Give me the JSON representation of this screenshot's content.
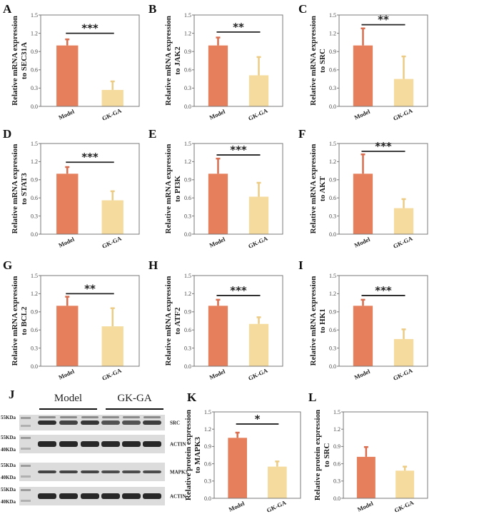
{
  "colors": {
    "model": "#e57f5c",
    "gkga": "#f5dc9e",
    "model_err": "#d86e4f",
    "gkga_err": "#eccb85"
  },
  "chart_data": [
    {
      "panel": "A",
      "type": "bar",
      "categories": [
        "Model",
        "GK-GA"
      ],
      "values": [
        1.0,
        0.27
      ],
      "errors": [
        0.1,
        0.14
      ],
      "ylabel": [
        "Relative mRNA expression",
        "to SEC31A"
      ],
      "ylim": [
        0,
        1.5
      ],
      "yticks": [
        "0.0",
        "0.3",
        "0.6",
        "0.9",
        "1.2",
        "1.5"
      ],
      "significance": "***",
      "sig_y": 1.2
    },
    {
      "panel": "B",
      "type": "bar",
      "categories": [
        "Model",
        "GK-GA"
      ],
      "values": [
        1.0,
        0.51
      ],
      "errors": [
        0.13,
        0.3
      ],
      "ylabel": [
        "Relative mRNA expression",
        "to JAK2"
      ],
      "ylim": [
        0,
        1.5
      ],
      "yticks": [
        "0.0",
        "0.3",
        "0.6",
        "0.9",
        "1.2",
        "1.5"
      ],
      "significance": "**",
      "sig_y": 1.22
    },
    {
      "panel": "C",
      "type": "bar",
      "categories": [
        "Model",
        "GK-GA"
      ],
      "values": [
        1.0,
        0.45
      ],
      "errors": [
        0.28,
        0.37
      ],
      "ylabel": [
        "Relative mRNA expression",
        "to SRC"
      ],
      "ylim": [
        0,
        1.5
      ],
      "yticks": [
        "0.0",
        "0.3",
        "0.6",
        "0.9",
        "1.2",
        "1.5"
      ],
      "significance": "**",
      "sig_y": 1.34
    },
    {
      "panel": "D",
      "type": "bar",
      "categories": [
        "Model",
        "GK-GA"
      ],
      "values": [
        1.0,
        0.56
      ],
      "errors": [
        0.11,
        0.15
      ],
      "ylabel": [
        "Relative mRNA expression",
        "to STAT3"
      ],
      "ylim": [
        0,
        1.5
      ],
      "yticks": [
        "0.0",
        "0.3",
        "0.6",
        "0.9",
        "1.2",
        "1.5"
      ],
      "significance": "***",
      "sig_y": 1.19
    },
    {
      "panel": "E",
      "type": "bar",
      "categories": [
        "Model",
        "GK-GA"
      ],
      "values": [
        1.0,
        0.62
      ],
      "errors": [
        0.25,
        0.23
      ],
      "ylabel": [
        "Relative mRNA expression",
        "to PI3K"
      ],
      "ylim": [
        0,
        1.5
      ],
      "yticks": [
        "0.0",
        "0.3",
        "0.6",
        "0.9",
        "1.2",
        "1.5"
      ],
      "significance": "***",
      "sig_y": 1.31
    },
    {
      "panel": "F",
      "type": "bar",
      "categories": [
        "Model",
        "GK-GA"
      ],
      "values": [
        1.0,
        0.43
      ],
      "errors": [
        0.32,
        0.15
      ],
      "ylabel": [
        "Relative mRNA expression",
        "to AKT"
      ],
      "ylim": [
        0,
        1.5
      ],
      "yticks": [
        "0.0",
        "0.3",
        "0.6",
        "0.9",
        "1.2",
        "1.5"
      ],
      "significance": "***",
      "sig_y": 1.37
    },
    {
      "panel": "G",
      "type": "bar",
      "categories": [
        "Model",
        "GK-GA"
      ],
      "values": [
        1.0,
        0.66
      ],
      "errors": [
        0.15,
        0.3
      ],
      "ylabel": [
        "Relative mRNA expression",
        "to BCL2"
      ],
      "ylim": [
        0,
        1.5
      ],
      "yticks": [
        "0.0",
        "0.3",
        "0.6",
        "0.9",
        "1.2",
        "1.5"
      ],
      "significance": "**",
      "sig_y": 1.2
    },
    {
      "panel": "H",
      "type": "bar",
      "categories": [
        "Model",
        "GK-GA"
      ],
      "values": [
        1.0,
        0.7
      ],
      "errors": [
        0.1,
        0.11
      ],
      "ylabel": [
        "Relative mRNA expression",
        "to ATF2"
      ],
      "ylim": [
        0,
        1.5
      ],
      "yticks": [
        "0.0",
        "0.3",
        "0.6",
        "0.9",
        "1.2",
        "1.5"
      ],
      "significance": "***",
      "sig_y": 1.17
    },
    {
      "panel": "I",
      "type": "bar",
      "categories": [
        "Model",
        "GK-GA"
      ],
      "values": [
        1.0,
        0.45
      ],
      "errors": [
        0.1,
        0.16
      ],
      "ylabel": [
        "Relative mRNA expression",
        "to HK1"
      ],
      "ylim": [
        0,
        1.5
      ],
      "yticks": [
        "0.0",
        "0.3",
        "0.6",
        "0.9",
        "1.2",
        "1.5"
      ],
      "significance": "***",
      "sig_y": 1.17
    },
    {
      "panel": "K",
      "type": "bar",
      "categories": [
        "Model",
        "GK-GA"
      ],
      "values": [
        1.05,
        0.55
      ],
      "errors": [
        0.09,
        0.09
      ],
      "ylabel": [
        "Relative protein expression",
        "to MAPK3"
      ],
      "ylim": [
        0,
        1.5
      ],
      "yticks": [
        "0.0",
        "0.3",
        "0.6",
        "0.9",
        "1.2",
        "1.5"
      ],
      "significance": "*",
      "sig_y": 1.29
    },
    {
      "panel": "L",
      "type": "bar",
      "categories": [
        "Model",
        "GK-GA"
      ],
      "values": [
        0.72,
        0.48
      ],
      "errors": [
        0.17,
        0.07
      ],
      "ylabel": [
        "Relative protein expression",
        "to SRC"
      ],
      "ylim": [
        0,
        1.5
      ],
      "yticks": [
        "0.0",
        "0.3",
        "0.6",
        "0.9",
        "1.2",
        "1.5"
      ],
      "significance": "",
      "sig_y": null
    }
  ],
  "blot": {
    "panel": "J",
    "groups": [
      "Model",
      "GK-GA"
    ],
    "lanes_per_group": 3,
    "rows": [
      {
        "protein": "SRC",
        "markers": [
          "55KDa"
        ],
        "band_intensity": [
          0.95,
          0.8,
          0.9,
          0.7,
          0.7,
          0.85
        ],
        "double_band": true
      },
      {
        "protein": "ACTIN",
        "markers": [
          "55KDa",
          "40KDa"
        ],
        "band_intensity": [
          1,
          1,
          1,
          1,
          1,
          1
        ],
        "double_band": false
      },
      {
        "protein": "MAPK3",
        "markers": [
          "55KDa",
          "40KDa"
        ],
        "band_intensity": [
          0.8,
          0.8,
          0.8,
          0.75,
          0.75,
          0.75
        ],
        "double_band": false
      },
      {
        "protein": "ACTIN",
        "markers": [
          "55KDa",
          "40KDa"
        ],
        "band_intensity": [
          1,
          1,
          1,
          1,
          1,
          1
        ],
        "double_band": false
      }
    ]
  }
}
